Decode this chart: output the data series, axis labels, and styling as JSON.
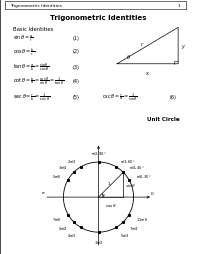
{
  "title": "Trigonometric Identities",
  "header_label": "Trigonometric Identities",
  "subtitle": "Basic Identities",
  "unit_circle_title": "Unit Circle",
  "background_color": "#ffffff",
  "page_border_color": "#000000",
  "identities": [
    {
      "formula": "$\\sin\\theta = \\frac{a}{r}$",
      "num": "(1)"
    },
    {
      "formula": "$\\cos\\theta = \\frac{b}{r}$",
      "num": "(2)"
    },
    {
      "formula": "$\\tan\\theta = \\frac{a}{b} = \\frac{\\sin\\theta}{\\cos\\theta}$",
      "num": "(3)"
    },
    {
      "formula": "$\\cot\\theta = \\frac{b}{a} = \\frac{\\cos\\theta}{\\sin\\theta} = \\frac{1}{\\tan\\theta}$",
      "num": "(4)"
    },
    {
      "formula": "$\\sec\\theta = \\frac{r}{b} = \\frac{1}{\\cos\\theta}$",
      "num": "(5)"
    },
    {
      "formula": "$\\csc\\theta = \\frac{r}{a} = \\frac{1}{\\sin\\theta}$",
      "num": "(6)"
    }
  ],
  "angles_deg": [
    30,
    45,
    60,
    90,
    120,
    135,
    150,
    210,
    225,
    240,
    270,
    300,
    315,
    330
  ],
  "angle_labels": [
    "$\\pi/6, 30°$",
    "$\\pi/4, 45°$",
    "$\\pi/3, 60°$",
    "$\\pi/2, 90°$",
    "$2\\pi/3$",
    "$3\\pi/4$",
    "$5\\pi/6$",
    "$7\\pi/6$",
    "$5\\pi/4$",
    "$4\\pi/3$",
    "$3\\pi/2$",
    "$5\\pi/3$",
    "$7\\pi/4$",
    "$11\\pi/6$"
  ]
}
